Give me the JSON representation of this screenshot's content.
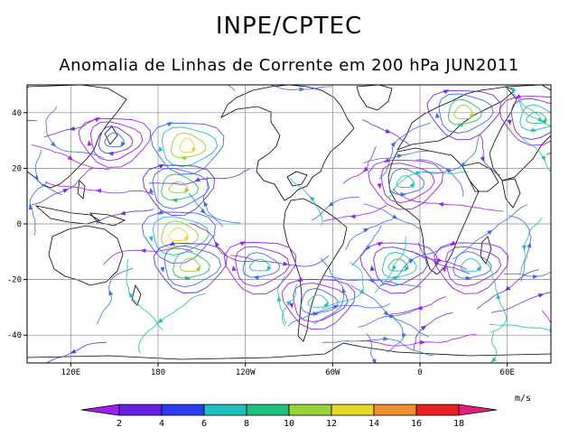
{
  "header": {
    "org": "INPE/CPTEC",
    "subtitle": "Anomalia de Linhas de Corrente em 200 hPa JUN2011"
  },
  "map": {
    "lat_ticks": [
      "40",
      "20",
      "0",
      "-20",
      "-40"
    ],
    "lon_ticks": [
      "120E",
      "180",
      "120W",
      "60W",
      "0",
      "60E"
    ],
    "grid": true,
    "projection": "cylindrical",
    "lon_range": [
      90,
      450
    ],
    "lat_range": [
      -50,
      50
    ],
    "streamline_palette": [
      "#a020f0",
      "#6a2ee0",
      "#3c6cf0",
      "#1fbfbf",
      "#20c070",
      "#9acd32",
      "#e6d82a",
      "#f09030",
      "#e83020"
    ],
    "anomaly_centers": [
      {
        "lon": 200,
        "lat": 28,
        "sense": "anticyclonic",
        "max_speed": 14
      },
      {
        "lon": 194,
        "lat": -4,
        "sense": "cyclonic",
        "max_speed": 14
      },
      {
        "lon": 194,
        "lat": 13,
        "sense": "anticyclonic",
        "max_speed": 12
      },
      {
        "lon": 202,
        "lat": -15,
        "sense": "cyclonic",
        "max_speed": 12
      },
      {
        "lon": 345,
        "lat": -15,
        "sense": "anticyclonic",
        "max_speed": 10
      },
      {
        "lon": 390,
        "lat": 40,
        "sense": "anticyclonic",
        "max_speed": 12
      },
      {
        "lon": 440,
        "lat": 38,
        "sense": "cyclonic",
        "max_speed": 10
      },
      {
        "lon": 350,
        "lat": 15,
        "sense": "cyclonic",
        "max_speed": 8
      },
      {
        "lon": 395,
        "lat": -15,
        "sense": "cyclonic",
        "max_speed": 8
      },
      {
        "lon": 290,
        "lat": -28,
        "sense": "cyclonic",
        "max_speed": 8
      },
      {
        "lon": 150,
        "lat": 30,
        "sense": "anticyclonic",
        "max_speed": 6
      },
      {
        "lon": 250,
        "lat": -15,
        "sense": "anticyclonic",
        "max_speed": 8
      }
    ]
  },
  "colorbar": {
    "labels": [
      "2",
      "4",
      "6",
      "8",
      "10",
      "12",
      "14",
      "16",
      "18"
    ],
    "colors": [
      "#a020f0",
      "#6820e0",
      "#2a3cf0",
      "#1fbfbf",
      "#20c080",
      "#9ad23a",
      "#e6d82a",
      "#f09030",
      "#e82020",
      "#e0207a"
    ],
    "units": "m/s"
  }
}
